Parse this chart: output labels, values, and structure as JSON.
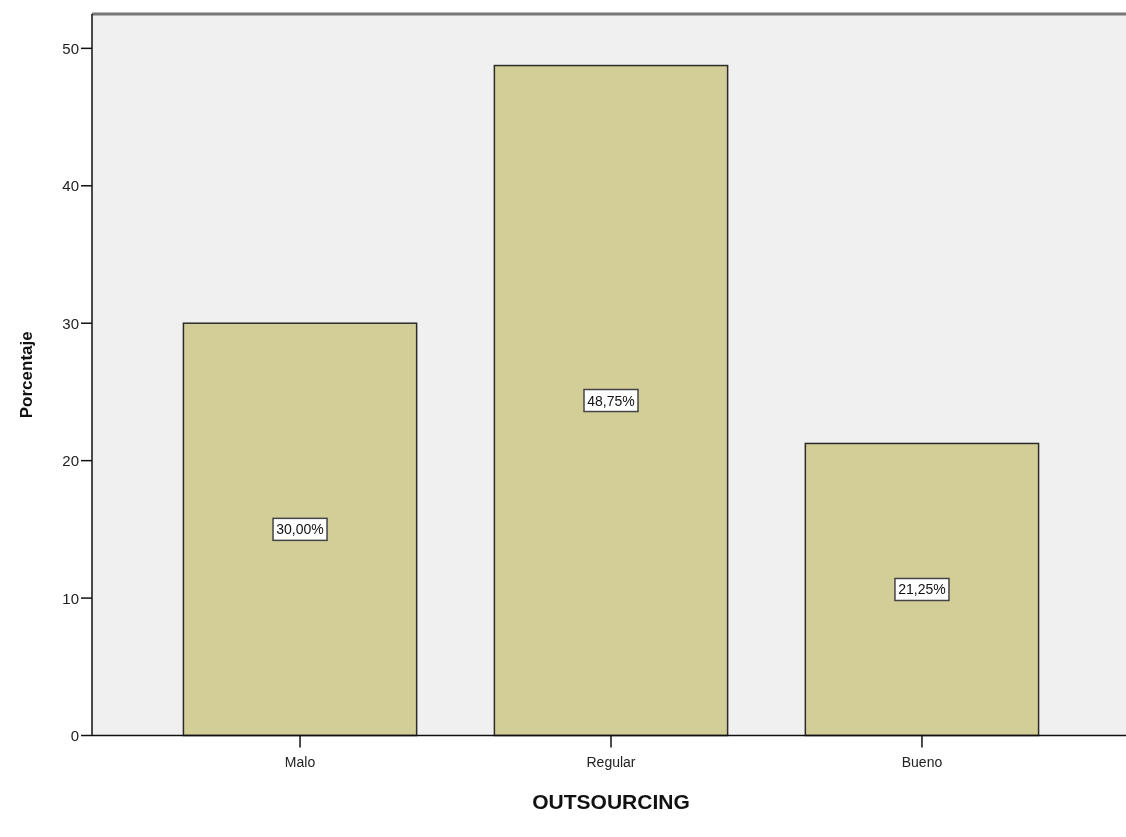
{
  "chart_data": {
    "type": "bar",
    "xlabel": "OUTSOURCING",
    "ylabel": "Porcentaje",
    "categories": [
      "Malo",
      "Regular",
      "Bueno"
    ],
    "values": [
      30,
      48.75,
      21.25
    ],
    "value_labels": [
      "30,00%",
      "48,75%",
      "21,25%"
    ],
    "color": "#d3ce97",
    "ylim": [
      0,
      52.5
    ],
    "yticks": [
      0,
      10,
      20,
      30,
      40,
      50
    ]
  }
}
